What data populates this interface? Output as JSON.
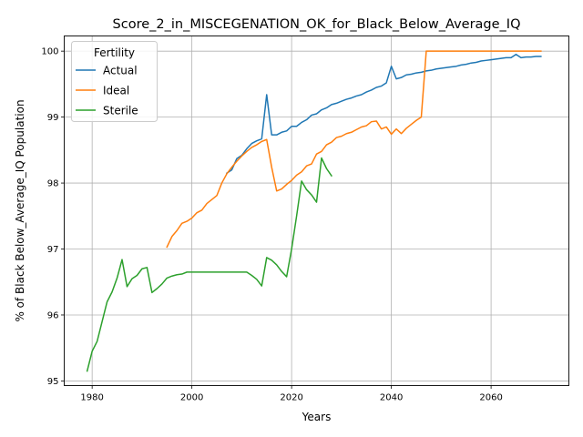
{
  "chart_data": {
    "type": "line",
    "title": "Score_2_in_MISCEGENATION_OK_for_Black_Below_Average_IQ",
    "xlabel": "Years",
    "ylabel": "% of Black Below_Average_IQ Population",
    "xlim": [
      1974.4,
      2075.6
    ],
    "ylim": [
      94.93,
      100.23
    ],
    "xticks": [
      1980,
      2000,
      2020,
      2040,
      2060
    ],
    "yticks": [
      95,
      96,
      97,
      98,
      99,
      100
    ],
    "grid": true,
    "legend": {
      "title": "Fertility",
      "placement": "upper left"
    },
    "series": [
      {
        "name": "Actual",
        "color": "#1f77b4",
        "x": [
          2007,
          2008,
          2009,
          2010,
          2011,
          2012,
          2013,
          2014,
          2015,
          2016,
          2017,
          2018,
          2019,
          2020,
          2021,
          2022,
          2023,
          2024,
          2025,
          2026,
          2027,
          2028,
          2029,
          2030,
          2031,
          2032,
          2033,
          2034,
          2035,
          2036,
          2037,
          2038,
          2039,
          2040,
          2041,
          2042,
          2043,
          2044,
          2045,
          2046,
          2047,
          2048,
          2049,
          2050,
          2051,
          2052,
          2053,
          2054,
          2055,
          2056,
          2057,
          2058,
          2059,
          2060,
          2061,
          2062,
          2063,
          2064,
          2065,
          2066,
          2067,
          2068,
          2069,
          2070
        ],
        "values": [
          98.15,
          98.2,
          98.37,
          98.42,
          98.52,
          98.6,
          98.64,
          98.67,
          99.34,
          98.73,
          98.73,
          98.77,
          98.79,
          98.86,
          98.86,
          98.92,
          98.96,
          99.03,
          99.05,
          99.11,
          99.14,
          99.19,
          99.21,
          99.24,
          99.27,
          99.29,
          99.32,
          99.34,
          99.38,
          99.41,
          99.45,
          99.47,
          99.52,
          99.77,
          99.58,
          99.6,
          99.64,
          99.65,
          99.67,
          99.68,
          99.7,
          99.71,
          99.73,
          99.74,
          99.75,
          99.76,
          99.77,
          99.79,
          99.8,
          99.82,
          99.83,
          99.85,
          99.86,
          99.87,
          99.88,
          99.89,
          99.9,
          99.9,
          99.95,
          99.9,
          99.91,
          99.91,
          99.92,
          99.92
        ]
      },
      {
        "name": "Ideal",
        "color": "#ff7f0e",
        "x": [
          1995,
          1996,
          1997,
          1998,
          1999,
          2000,
          2001,
          2002,
          2003,
          2004,
          2005,
          2006,
          2007,
          2008,
          2009,
          2010,
          2011,
          2012,
          2013,
          2014,
          2015,
          2016,
          2017,
          2018,
          2019,
          2020,
          2021,
          2022,
          2023,
          2024,
          2025,
          2026,
          2027,
          2028,
          2029,
          2030,
          2031,
          2032,
          2033,
          2034,
          2035,
          2036,
          2037,
          2038,
          2039,
          2040,
          2041,
          2042,
          2043,
          2044,
          2045,
          2046,
          2047,
          2050,
          2055,
          2060,
          2065,
          2070
        ],
        "values": [
          97.03,
          97.19,
          97.28,
          97.39,
          97.42,
          97.47,
          97.55,
          97.59,
          97.69,
          97.75,
          97.81,
          98.0,
          98.14,
          98.24,
          98.33,
          98.41,
          98.48,
          98.54,
          98.58,
          98.63,
          98.66,
          98.24,
          97.88,
          97.91,
          97.98,
          98.04,
          98.12,
          98.17,
          98.26,
          98.29,
          98.44,
          98.48,
          98.58,
          98.62,
          98.69,
          98.71,
          98.75,
          98.77,
          98.81,
          98.85,
          98.87,
          98.93,
          98.94,
          98.82,
          98.85,
          98.74,
          98.82,
          98.75,
          98.83,
          98.89,
          98.95,
          99.0,
          100.0,
          100.0,
          100.0,
          100.0,
          100.0,
          100.0
        ]
      },
      {
        "name": "Sterile",
        "color": "#2ca02c",
        "x": [
          1979,
          1980,
          1981,
          1982,
          1983,
          1984,
          1985,
          1986,
          1987,
          1988,
          1989,
          1990,
          1991,
          1992,
          1993,
          1994,
          1995,
          1996,
          1997,
          1998,
          1999,
          2000,
          2005,
          2010,
          2011,
          2012,
          2013,
          2014,
          2015,
          2016,
          2017,
          2018,
          2019,
          2020,
          2021,
          2022,
          2023,
          2024,
          2025,
          2026,
          2027,
          2028
        ],
        "values": [
          95.15,
          95.45,
          95.6,
          95.9,
          96.2,
          96.35,
          96.56,
          96.84,
          96.43,
          96.55,
          96.6,
          96.7,
          96.72,
          96.34,
          96.4,
          96.47,
          96.56,
          96.59,
          96.61,
          96.62,
          96.65,
          96.65,
          96.65,
          96.65,
          96.65,
          96.6,
          96.54,
          96.44,
          96.87,
          96.83,
          96.76,
          96.66,
          96.58,
          97.0,
          97.5,
          98.03,
          97.9,
          97.82,
          97.71,
          98.38,
          98.22,
          98.11
        ]
      }
    ]
  }
}
